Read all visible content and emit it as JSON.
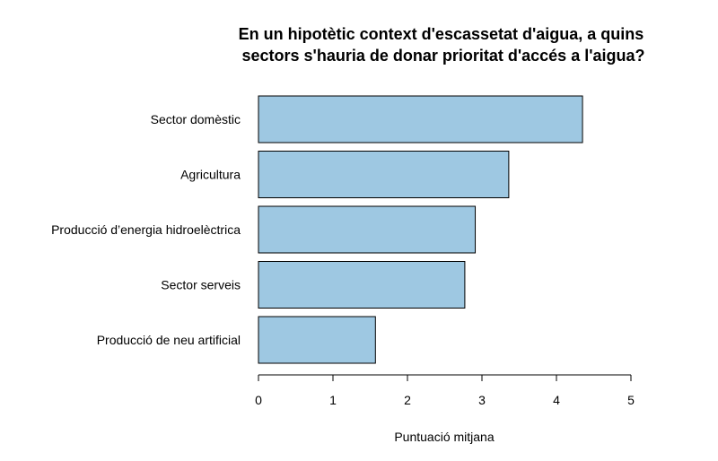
{
  "chart_data": {
    "type": "bar",
    "orientation": "horizontal",
    "title": "En un hipotètic context d'escassetat d'aigua, a quins\nsectors s'hauria de donar prioritat d'accés a l'aigua?",
    "categories": [
      "Sector domèstic",
      "Agricultura",
      "Producció d’energia hidroelèctrica",
      "Sector serveis",
      "Producció de neu artificial"
    ],
    "values": [
      4.35,
      3.36,
      2.91,
      2.77,
      1.57
    ],
    "xlabel": "Puntuació mitjana",
    "ylabel": "",
    "xlim": [
      0,
      5
    ],
    "xticks": [
      0,
      1,
      2,
      3,
      4,
      5
    ],
    "bar_color": "#9ec8e2",
    "grid": false
  }
}
